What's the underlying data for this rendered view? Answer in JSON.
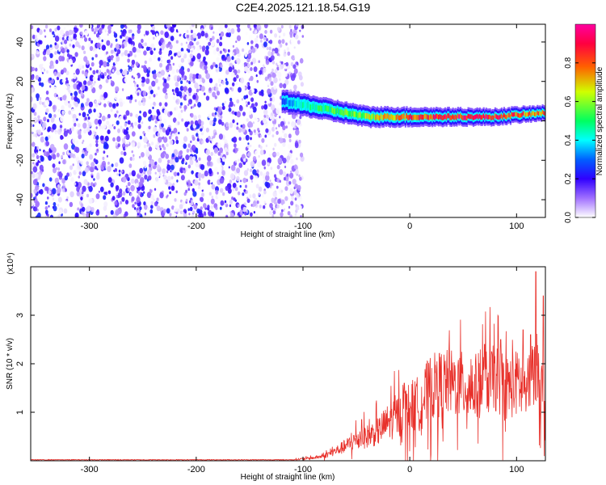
{
  "title": "C2E4.2025.121.18.54.G19",
  "chart_data": [
    {
      "type": "heatmap",
      "title": "C2E4.2025.121.18.54.G19",
      "xlabel": "Height of straight line (km)",
      "ylabel": "Frequency (Hz)",
      "xlim": [
        -355,
        127
      ],
      "ylim": [
        -49,
        49
      ],
      "x_ticks": [
        "-300",
        "-200",
        "-100",
        "0",
        "100"
      ],
      "y_ticks": [
        "-40",
        "-20",
        "0",
        "20",
        "40"
      ],
      "colorbar": {
        "label": "Normalized spectral amplitude",
        "range": [
          0.0,
          1.0
        ],
        "ticks": [
          "0.0",
          "0.2",
          "0.4",
          "0.6",
          "0.8"
        ],
        "colormap": [
          "#ffffff",
          "#7000ff",
          "#0000ff",
          "#00ffff",
          "#00ff00",
          "#ffff00",
          "#ff0000",
          "#ff00ff"
        ]
      },
      "noise_region": {
        "x_range": [
          -355,
          -110
        ],
        "amplitude": [
          0.0,
          0.25
        ]
      },
      "ridge": {
        "x": [
          -120,
          -100,
          -80,
          -60,
          -40,
          -20,
          0,
          20,
          40,
          60,
          80,
          100,
          127
        ],
        "y": [
          10,
          8,
          6,
          4,
          2,
          2,
          2,
          2,
          2,
          2,
          2,
          3,
          4
        ],
        "amplitude": [
          0.3,
          0.45,
          0.5,
          0.55,
          0.6,
          0.7,
          0.8,
          0.85,
          0.9,
          0.85,
          0.85,
          0.8,
          0.75
        ]
      }
    },
    {
      "type": "line",
      "xlabel": "Height of straight line (km)",
      "ylabel": "SNR (10 * v/v)",
      "y_multiplier": "(x10⁴)",
      "xlim": [
        -355,
        127
      ],
      "ylim": [
        0,
        4
      ],
      "x_ticks": [
        "-300",
        "-200",
        "-100",
        "0",
        "100"
      ],
      "y_ticks": [
        "1",
        "2",
        "3"
      ],
      "color": "#e8302a",
      "series": [
        {
          "x": [
            -355,
            -110,
            -100,
            -90,
            -80,
            -70,
            -60,
            -50,
            -40,
            -30,
            -20,
            -10,
            0,
            10,
            20,
            30,
            40,
            50,
            60,
            70,
            80,
            90,
            100,
            110,
            120,
            125,
            127
          ],
          "y": [
            0.02,
            0.02,
            0.04,
            0.06,
            0.1,
            0.2,
            0.3,
            0.45,
            0.5,
            0.6,
            0.8,
            0.95,
            1.1,
            1.2,
            1.5,
            1.6,
            1.6,
            1.55,
            1.5,
            1.6,
            1.7,
            1.5,
            1.6,
            1.4,
            2.0,
            1.2,
            0.7
          ],
          "peaks": [
            {
              "x": 118,
              "y": 3.9
            },
            {
              "x": 125,
              "y": 3.4
            },
            {
              "x": 85,
              "y": 2.5
            },
            {
              "x": 106,
              "y": 2.7
            },
            {
              "x": 113,
              "y": 2.6
            },
            {
              "x": 70,
              "y": 2.4
            },
            {
              "x": -5,
              "y": 1.6
            },
            {
              "x": -45,
              "y": 0.85
            }
          ]
        }
      ]
    }
  ]
}
